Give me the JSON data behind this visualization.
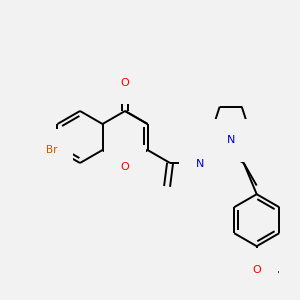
{
  "bg_color": "#f2f2f2",
  "bond_color": "#000000",
  "bond_width": 1.4,
  "atom_colors": {
    "O": "#ff0000",
    "N": "#0000cd",
    "Br": "#cc5500",
    "C": "#000000",
    "H": "#000000"
  },
  "figsize": [
    3.0,
    3.0
  ],
  "dpi": 100
}
